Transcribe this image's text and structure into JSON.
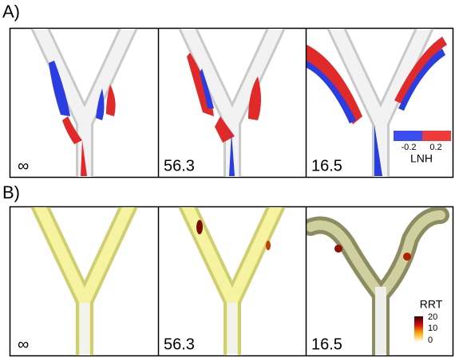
{
  "panels": [
    {
      "label": "A)",
      "subpanels": [
        {
          "label": "∞"
        },
        {
          "label": "56.3"
        },
        {
          "label": "16.5"
        }
      ],
      "colorbar": {
        "title": "LNH",
        "ticks": [
          "-0.2",
          "0.2"
        ]
      }
    },
    {
      "label": "B)",
      "subpanels": [
        {
          "label": "∞"
        },
        {
          "label": "56.3"
        },
        {
          "label": "16.5"
        }
      ],
      "colorbar": {
        "title": "RRT",
        "ticks": [
          "20",
          "10",
          "0"
        ]
      }
    }
  ]
}
